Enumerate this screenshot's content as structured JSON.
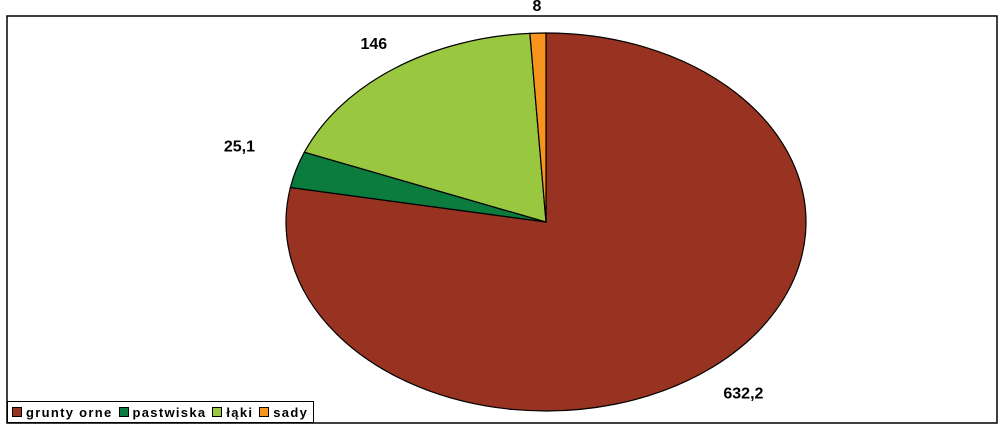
{
  "chart_data": {
    "type": "pie",
    "categories": [
      "grunty orne",
      "pastwiska",
      "łąki",
      "sady"
    ],
    "values": [
      632.2,
      25.1,
      146,
      8
    ],
    "data_labels": [
      "632,2",
      "25,1",
      "146",
      "8"
    ],
    "colors": [
      "#973320",
      "#0b7b3e",
      "#99c840",
      "#f7941d"
    ],
    "legend_position": "bottom-left",
    "start_angle_deg": 0,
    "direction": "clockwise"
  }
}
